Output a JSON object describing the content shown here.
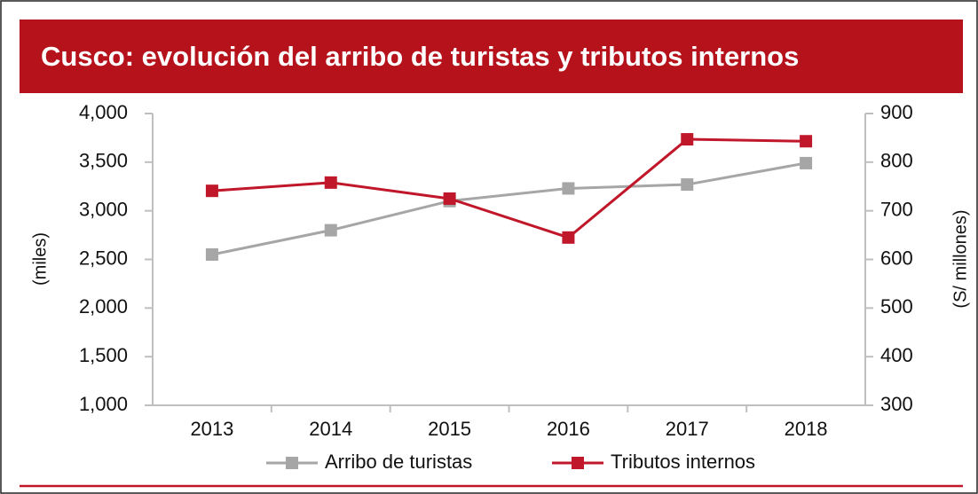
{
  "chart_data": {
    "type": "line",
    "title": "Cusco: evolución del arribo de turistas y tributos internos",
    "categories": [
      "2013",
      "2014",
      "2015",
      "2016",
      "2017",
      "2018"
    ],
    "ylabel": "(miles)",
    "y2label": "(S/ millones)",
    "ylim": [
      1000,
      4000
    ],
    "yticks": [
      {
        "value": 1000,
        "label": "1,000"
      },
      {
        "value": 1500,
        "label": "1,500"
      },
      {
        "value": 2000,
        "label": "2,000"
      },
      {
        "value": 2500,
        "label": "2,500"
      },
      {
        "value": 3000,
        "label": "3,000"
      },
      {
        "value": 3500,
        "label": "3,500"
      },
      {
        "value": 4000,
        "label": "4,000"
      }
    ],
    "y2lim": [
      300,
      900
    ],
    "y2ticks": [
      300,
      400,
      500,
      600,
      700,
      800,
      900
    ],
    "series": [
      {
        "name": "Arribo de turistas",
        "color": "#a6a6a6",
        "values": [
          2550,
          2800,
          3100,
          3230,
          3270,
          3490
        ]
      },
      {
        "name": "Tributos internos",
        "color": "#c0182a",
        "axis": "y2",
        "values": [
          741,
          758,
          725,
          645,
          847,
          843
        ]
      }
    ]
  }
}
